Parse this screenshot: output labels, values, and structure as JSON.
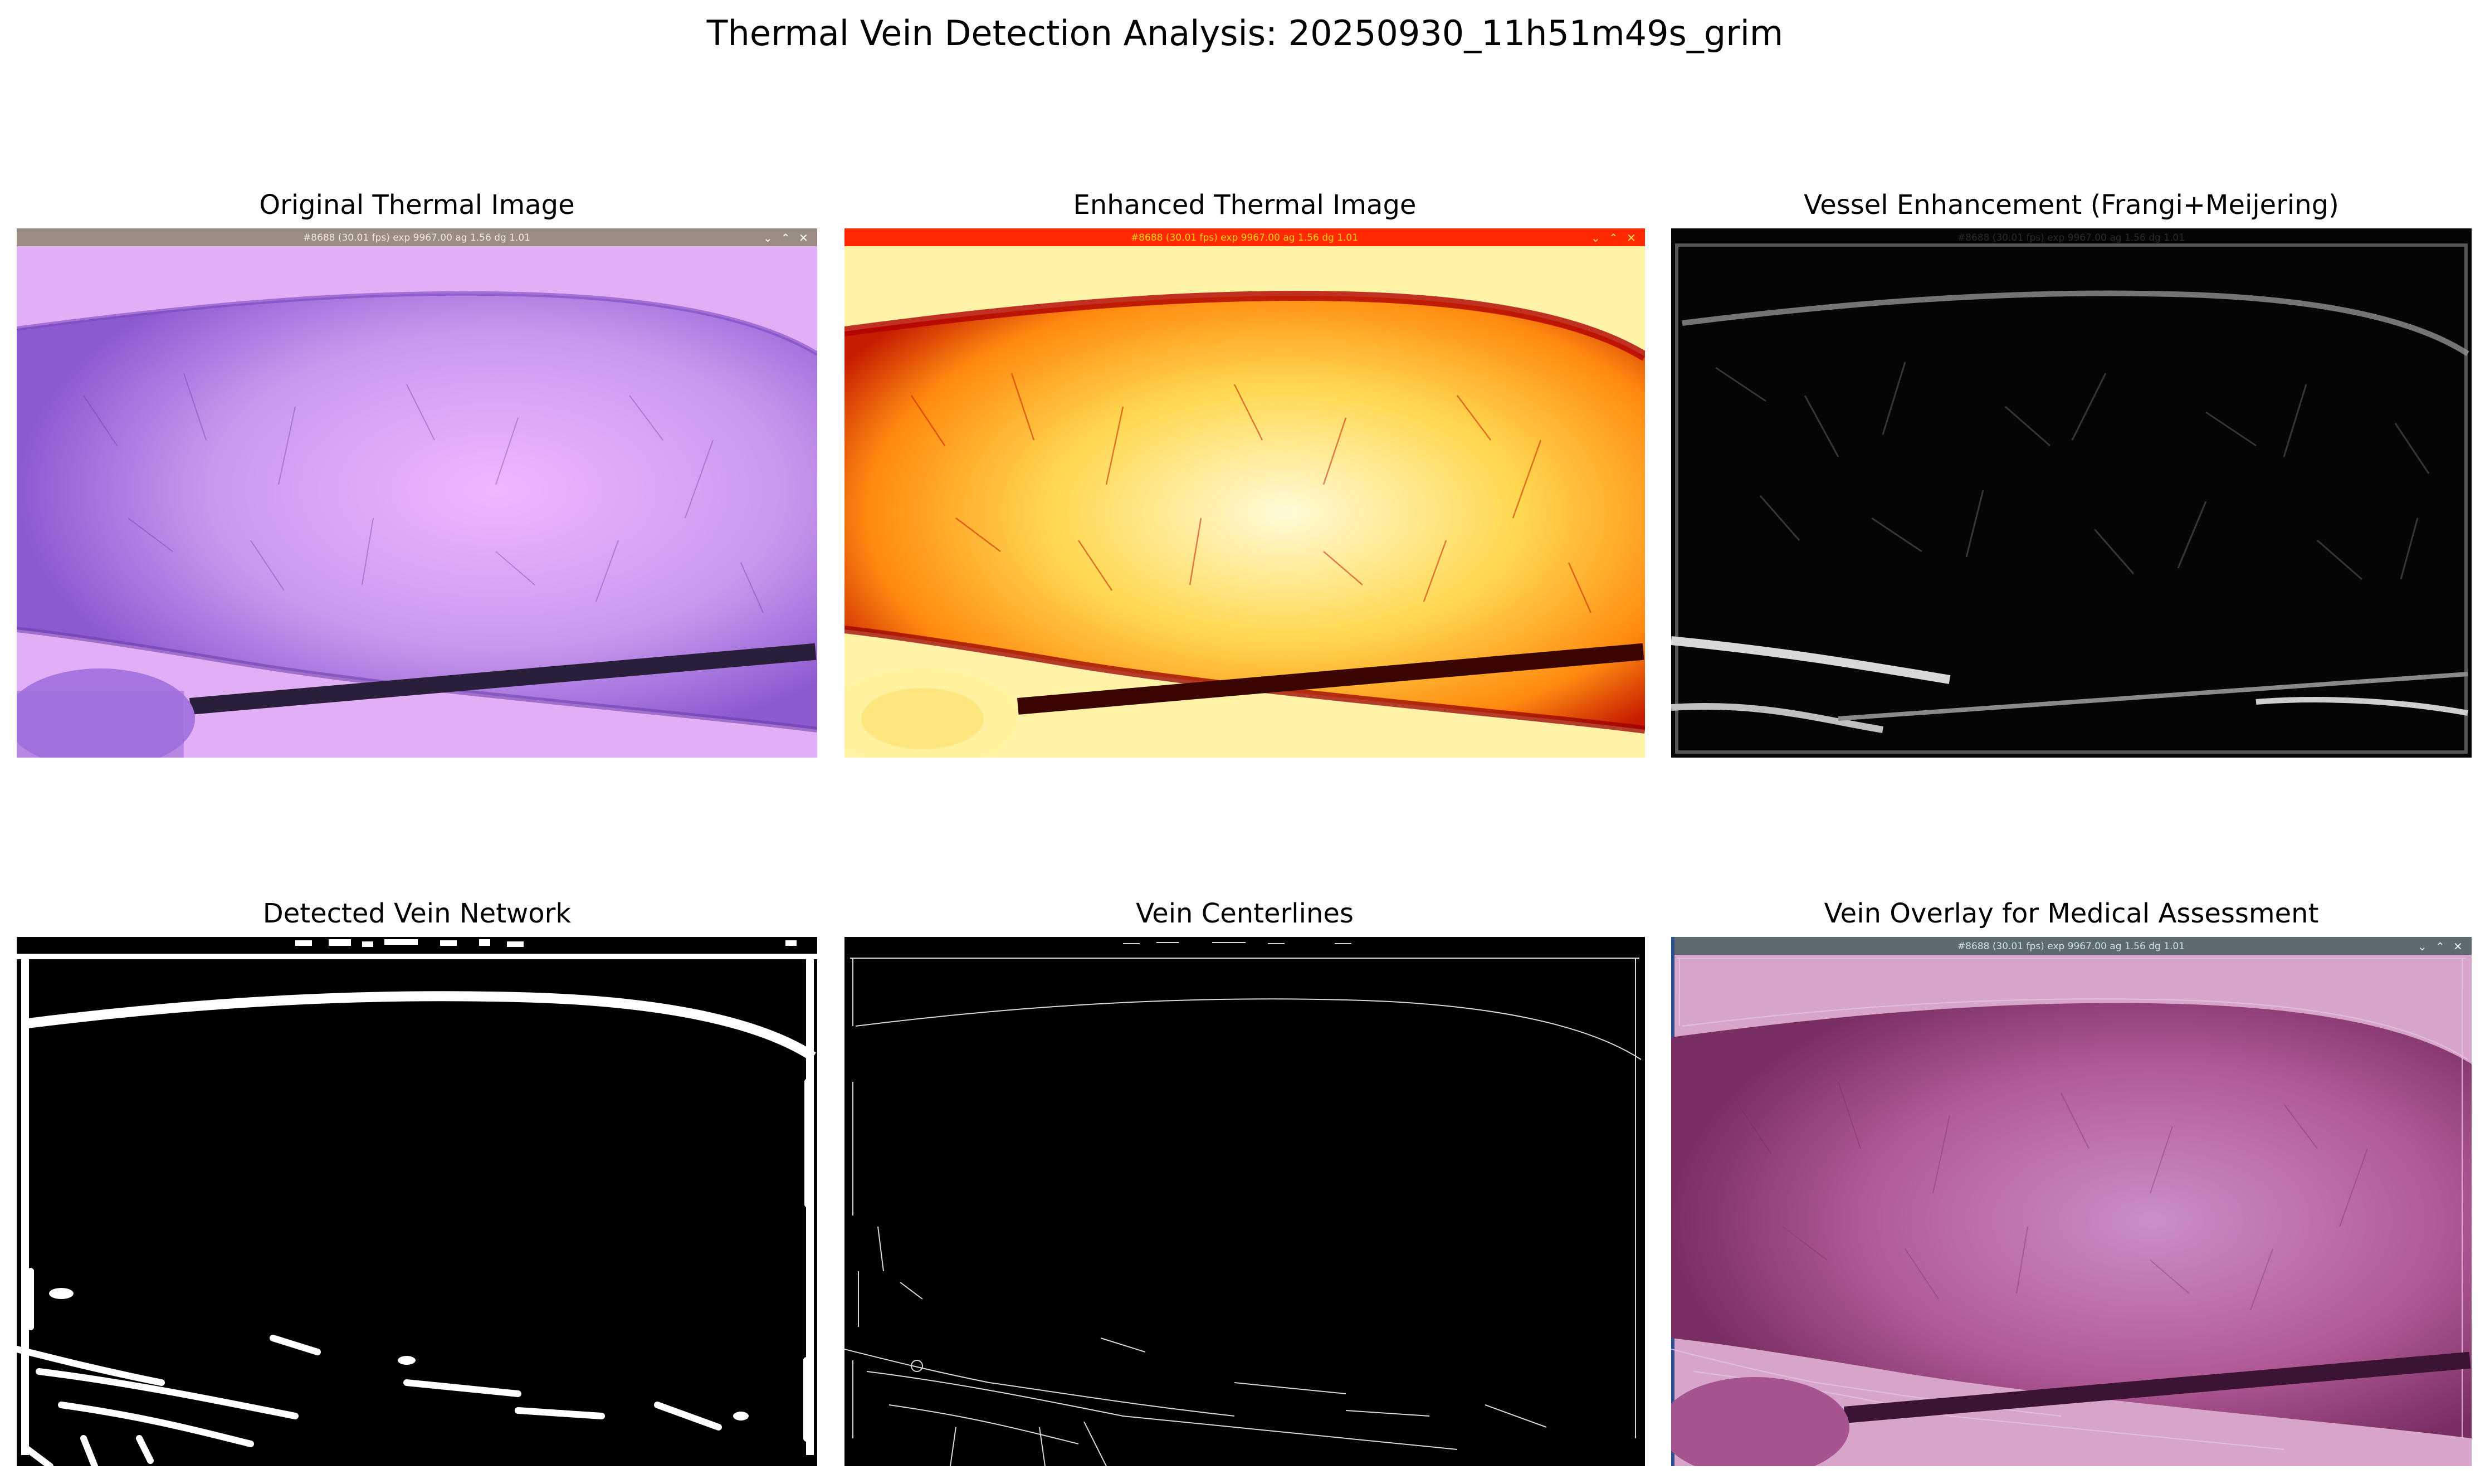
{
  "figure": {
    "title": "Thermal Vein Detection Analysis: 20250930_11h51m49s_grim"
  },
  "panels": [
    {
      "id": "original",
      "title": "Original Thermal Image"
    },
    {
      "id": "enhanced",
      "title": "Enhanced Thermal Image"
    },
    {
      "id": "vessel",
      "title": "Vessel Enhancement (Frangi+Meijering)"
    },
    {
      "id": "network",
      "title": "Detected Vein Network"
    },
    {
      "id": "centerline",
      "title": "Vein Centerlines"
    },
    {
      "id": "overlay",
      "title": "Vein Overlay for Medical Assessment"
    }
  ],
  "camera_hud": {
    "text": "#8688 (30.01 fps) exp 9967.00 ag 1.56 dg 1.01",
    "controls": [
      "⌄",
      "⌃",
      "✕"
    ]
  },
  "colors": {
    "original_skin": "#b98ae8",
    "original_bg": "#e6b3f7",
    "enhanced_core": "#fff6b0",
    "enhanced_edge": "#c51b00",
    "overlay_skin": "#b0528e",
    "overlay_bg": "#d3a0c8"
  }
}
